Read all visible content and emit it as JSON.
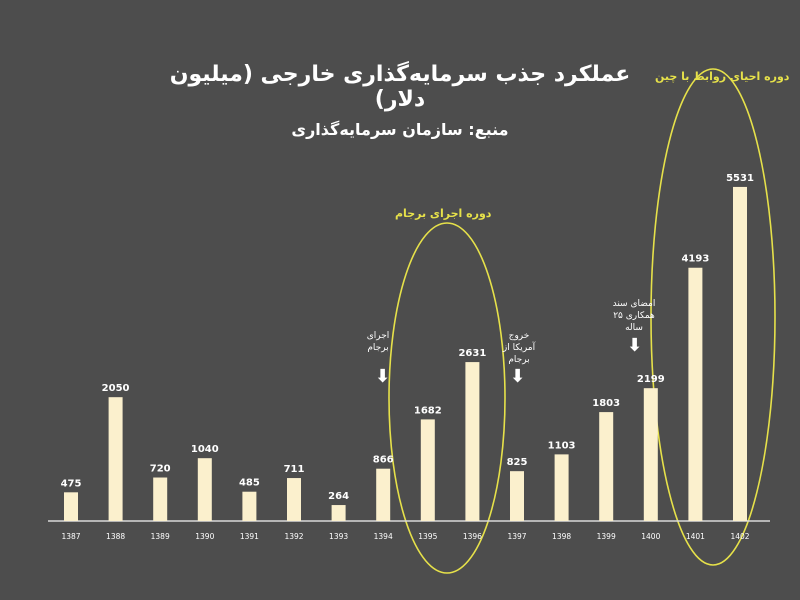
{
  "title": "عملکرد جذب سرمایه‌گذاری خارجی (میلیون دلار)",
  "subtitle": "منبع: سازمان سرمایه‌گذاری",
  "highlights": {
    "barjam_label": "دوره اجرای برجام",
    "china_label": "دوره احیای روابط با چین"
  },
  "annotations": {
    "barjam_start": "اجرای برجام",
    "us_exit": "خروج آمریکا از برجام",
    "china_deal": "امضای سند همکاری ۲۵ ساله"
  },
  "colors": {
    "background": "#4d4d4d",
    "bar": "#fbf0cd",
    "highlight": "#e6e14a",
    "text": "#ffffff"
  },
  "chart_data": {
    "type": "bar",
    "title": "عملکرد جذب سرمایه‌گذاری خارجی (میلیون دلار)",
    "subtitle": "منبع: سازمان سرمایه‌گذاری",
    "categories": [
      "1387",
      "1388",
      "1389",
      "1390",
      "1391",
      "1392",
      "1393",
      "1394",
      "1395",
      "1396",
      "1397",
      "1398",
      "1399",
      "1400",
      "1401",
      "1402"
    ],
    "values": [
      475,
      2050,
      720,
      1040,
      485,
      711,
      264,
      866,
      1682,
      2631,
      825,
      1103,
      1803,
      2199,
      4193,
      5531
    ],
    "ylim": [
      0,
      6000
    ],
    "xlabel": "",
    "ylabel": "",
    "grid": false,
    "legend": "none"
  }
}
